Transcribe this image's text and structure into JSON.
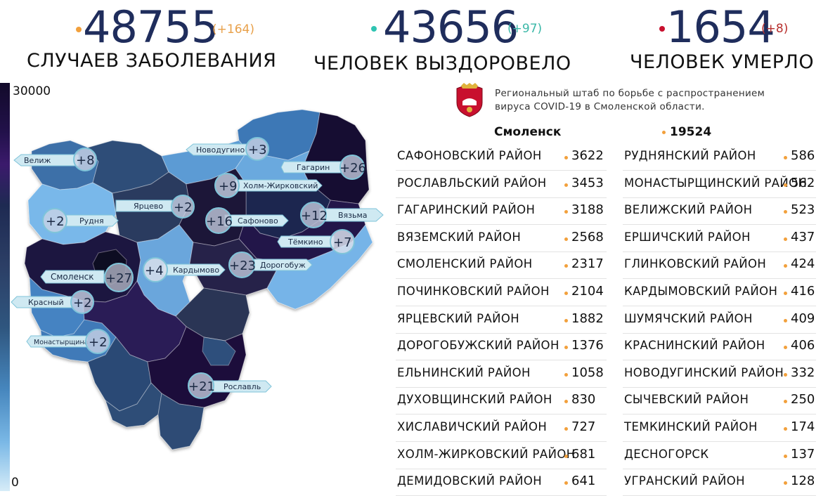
{
  "header": {
    "cases": {
      "value": "48755",
      "delta": "(+164)",
      "label": "СЛУЧАЕВ ЗАБОЛЕВАНИЯ",
      "dot_color": "#f2a03c",
      "delta_color": "#e8a04a"
    },
    "recovered": {
      "value": "43656",
      "delta": "(+97)",
      "label": "ЧЕЛОВЕК ВЫЗДОРОВЕЛО",
      "dot_color": "#2fc4b2",
      "delta_color": "#3cb8a8"
    },
    "deaths": {
      "value": "1654",
      "delta": "(+8)",
      "label": "ЧЕЛОВЕК УМЕРЛО",
      "dot_color": "#c8102e",
      "delta_color": "#b8302e"
    }
  },
  "legend": {
    "max": "30000",
    "min": "0"
  },
  "info": {
    "headquarters_line1": "Региональный штаб по борьбе с распространением",
    "headquarters_line2": "вируса  COVID-19 в Смоленской области.",
    "city_name": "Смоленск",
    "city_value": "19524"
  },
  "map_labels": [
    {
      "name": "Велиж",
      "delta": "+8"
    },
    {
      "name": "Новодугино",
      "delta": "+3"
    },
    {
      "name": "Гагарин",
      "delta": "+26"
    },
    {
      "name": "Холм-Жирковский",
      "delta": "+9"
    },
    {
      "name": "Ярцево",
      "delta": "+2"
    },
    {
      "name": "Рудня",
      "delta": "+2"
    },
    {
      "name": "Сафоново",
      "delta": "+16"
    },
    {
      "name": "Вязьма",
      "delta": "+12"
    },
    {
      "name": "Тёмкино",
      "delta": "+7"
    },
    {
      "name": "Смоленск",
      "delta": "+27"
    },
    {
      "name": "Кардымово",
      "delta": "+4"
    },
    {
      "name": "Дорогобуж",
      "delta": "+23"
    },
    {
      "name": "Красный",
      "delta": "+2"
    },
    {
      "name": "Монастырщина",
      "delta": "+2"
    },
    {
      "name": "Рославль",
      "delta": "+21"
    }
  ],
  "districts_left": [
    {
      "name": "САФОНОВСКИЙ РАЙОН",
      "value": "3622"
    },
    {
      "name": "РОСЛАВЛЬСКИЙ РАЙОН",
      "value": "3453"
    },
    {
      "name": "ГАГАРИНСКИЙ РАЙОН",
      "value": "3188"
    },
    {
      "name": "ВЯЗЕМСКИЙ РАЙОН",
      "value": "2568"
    },
    {
      "name": "СМОЛЕНСКИЙ РАЙОН",
      "value": "2317"
    },
    {
      "name": "ПОЧИНКОВСКИЙ РАЙОН",
      "value": "2104"
    },
    {
      "name": "ЯРЦЕВСКИЙ РАЙОН",
      "value": "1882"
    },
    {
      "name": "ДОРОГОБУЖСКИЙ РАЙОН",
      "value": "1376"
    },
    {
      "name": "ЕЛЬНИНСКИЙ РАЙОН",
      "value": "1058"
    },
    {
      "name": "ДУХОВЩИНСКИЙ РАЙОН",
      "value": "830"
    },
    {
      "name": "ХИСЛАВИЧСКИЙ РАЙОН",
      "value": "727"
    },
    {
      "name": "ХОЛМ-ЖИРКОВСКИЙ РАЙОН",
      "value": "681"
    },
    {
      "name": "ДЕМИДОВСКИЙ РАЙОН",
      "value": "641"
    }
  ],
  "districts_right": [
    {
      "name": "РУДНЯНСКИЙ РАЙОН",
      "value": "586"
    },
    {
      "name": "МОНАСТЫРЩИНСКИЙ РАЙОН",
      "value": "562"
    },
    {
      "name": "ВЕЛИЖСКИЙ РАЙОН",
      "value": "523"
    },
    {
      "name": "ЕРШИЧСКИЙ РАЙОН",
      "value": "437"
    },
    {
      "name": "ГЛИНКОВСКИЙ РАЙОН",
      "value": "424"
    },
    {
      "name": "КАРДЫМОВСКИЙ РАЙОН",
      "value": "416"
    },
    {
      "name": "ШУМЯЧСКИЙ РАЙОН",
      "value": "409"
    },
    {
      "name": "КРАСНИНСКИЙ РАЙОН",
      "value": "406"
    },
    {
      "name": "НОВОДУГИНСКИЙ РАЙОН",
      "value": "332"
    },
    {
      "name": "СЫЧЕВСКИЙ РАЙОН",
      "value": "250"
    },
    {
      "name": "ТЕМКИНСКИЙ РАЙОН",
      "value": "174"
    },
    {
      "name": "ДЕСНОГОРСК",
      "value": "137"
    },
    {
      "name": "УГРАНСКИЙ РАЙОН",
      "value": "128"
    }
  ]
}
